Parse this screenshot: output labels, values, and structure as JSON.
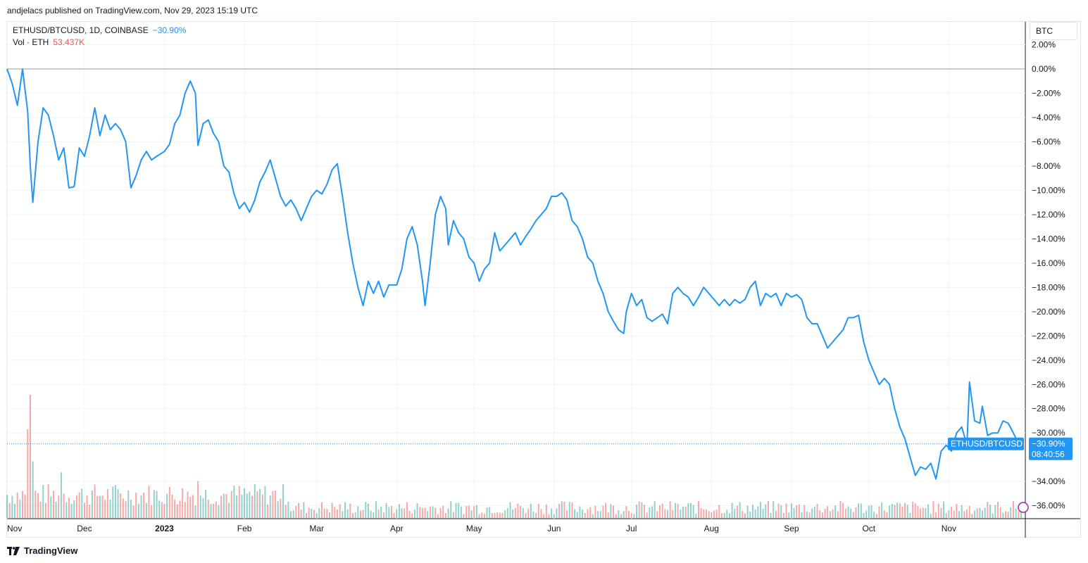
{
  "header": {
    "published": "andjelacs published on TradingView.com, Nov 29, 2023 15:19 UTC"
  },
  "legend": {
    "symbol": "ETHUSD/BTCUSD, 1D, COINBASE",
    "change": "−30.90%",
    "vol_label": "Vol · ETH",
    "vol_value": "53.437K"
  },
  "currency_button": "BTC",
  "price_tag": {
    "label": "ETHUSD/BTCUSD",
    "value": "−30.90%",
    "countdown": "08:40:56"
  },
  "branding": "TradingView",
  "colors": {
    "line": "#2196f3",
    "vol_up": "#26a69a",
    "vol_down": "#ef5350",
    "accent": "#2962ff"
  },
  "chart_data": {
    "type": "line",
    "title": "ETHUSD/BTCUSD, 1D, COINBASE",
    "xlabel": "",
    "ylabel": "",
    "y_scale": "percent",
    "ylim": [
      -37.5,
      2.2
    ],
    "y_ticks": [
      "2.00%",
      "0.00%",
      "−2.00%",
      "−4.00%",
      "−6.00%",
      "−8.00%",
      "−10.00%",
      "−12.00%",
      "−14.00%",
      "−16.00%",
      "−18.00%",
      "−20.00%",
      "−22.00%",
      "−24.00%",
      "−26.00%",
      "−28.00%",
      "−30.00%",
      "−34.00%",
      "−36.00%"
    ],
    "y_tick_values": [
      2,
      0,
      -2,
      -4,
      -6,
      -8,
      -10,
      -12,
      -14,
      -16,
      -18,
      -20,
      -22,
      -24,
      -26,
      -28,
      -30,
      -34,
      -36
    ],
    "x_ticks": [
      {
        "label": "Nov",
        "date": "2022-11-01"
      },
      {
        "label": "Dec",
        "date": "2022-12-01"
      },
      {
        "label": "2023",
        "date": "2023-01-01",
        "bold": true
      },
      {
        "label": "Feb",
        "date": "2023-02-01"
      },
      {
        "label": "Mar",
        "date": "2023-03-01"
      },
      {
        "label": "Apr",
        "date": "2023-04-01"
      },
      {
        "label": "May",
        "date": "2023-05-01"
      },
      {
        "label": "Jun",
        "date": "2023-06-01"
      },
      {
        "label": "Jul",
        "date": "2023-07-01"
      },
      {
        "label": "Aug",
        "date": "2023-08-01"
      },
      {
        "label": "Sep",
        "date": "2023-09-01"
      },
      {
        "label": "Oct",
        "date": "2023-10-01"
      },
      {
        "label": "Nov",
        "date": "2023-11-01"
      }
    ],
    "series": [
      {
        "points": [
          [
            "2022-11-01",
            0.0
          ],
          [
            "2022-11-03",
            -1.2
          ],
          [
            "2022-11-05",
            -3.0
          ],
          [
            "2022-11-07",
            0.0
          ],
          [
            "2022-11-09",
            -3.5
          ],
          [
            "2022-11-10",
            -8.0
          ],
          [
            "2022-11-11",
            -11.0
          ],
          [
            "2022-11-13",
            -6.0
          ],
          [
            "2022-11-15",
            -3.2
          ],
          [
            "2022-11-17",
            -3.8
          ],
          [
            "2022-11-19",
            -5.5
          ],
          [
            "2022-11-21",
            -7.5
          ],
          [
            "2022-11-23",
            -6.5
          ],
          [
            "2022-11-25",
            -9.8
          ],
          [
            "2022-11-27",
            -9.7
          ],
          [
            "2022-11-29",
            -6.5
          ],
          [
            "2022-12-01",
            -7.2
          ],
          [
            "2022-12-03",
            -5.5
          ],
          [
            "2022-12-05",
            -3.2
          ],
          [
            "2022-12-07",
            -5.5
          ],
          [
            "2022-12-09",
            -3.8
          ],
          [
            "2022-12-11",
            -5.0
          ],
          [
            "2022-12-13",
            -4.5
          ],
          [
            "2022-12-15",
            -5.0
          ],
          [
            "2022-12-17",
            -6.0
          ],
          [
            "2022-12-19",
            -9.8
          ],
          [
            "2022-12-21",
            -8.8
          ],
          [
            "2022-12-23",
            -7.5
          ],
          [
            "2022-12-25",
            -6.8
          ],
          [
            "2022-12-27",
            -7.5
          ],
          [
            "2022-12-29",
            -7.2
          ],
          [
            "2023-01-01",
            -6.8
          ],
          [
            "2023-01-03",
            -6.2
          ],
          [
            "2023-01-05",
            -4.5
          ],
          [
            "2023-01-07",
            -3.8
          ],
          [
            "2023-01-09",
            -2.0
          ],
          [
            "2023-01-11",
            -1.0
          ],
          [
            "2023-01-13",
            -2.0
          ],
          [
            "2023-01-14",
            -6.3
          ],
          [
            "2023-01-16",
            -4.5
          ],
          [
            "2023-01-18",
            -4.2
          ],
          [
            "2023-01-20",
            -5.3
          ],
          [
            "2023-01-22",
            -6.0
          ],
          [
            "2023-01-24",
            -8.0
          ],
          [
            "2023-01-26",
            -8.5
          ],
          [
            "2023-01-28",
            -10.3
          ],
          [
            "2023-01-30",
            -11.5
          ],
          [
            "2023-02-01",
            -11.0
          ],
          [
            "2023-02-03",
            -11.8
          ],
          [
            "2023-02-05",
            -10.8
          ],
          [
            "2023-02-07",
            -9.3
          ],
          [
            "2023-02-09",
            -8.5
          ],
          [
            "2023-02-11",
            -7.5
          ],
          [
            "2023-02-13",
            -9.0
          ],
          [
            "2023-02-15",
            -10.5
          ],
          [
            "2023-02-17",
            -11.3
          ],
          [
            "2023-02-19",
            -10.8
          ],
          [
            "2023-02-21",
            -11.5
          ],
          [
            "2023-02-23",
            -12.5
          ],
          [
            "2023-02-25",
            -11.5
          ],
          [
            "2023-02-27",
            -10.5
          ],
          [
            "2023-03-01",
            -10.0
          ],
          [
            "2023-03-03",
            -10.3
          ],
          [
            "2023-03-05",
            -9.5
          ],
          [
            "2023-03-07",
            -8.3
          ],
          [
            "2023-03-09",
            -7.8
          ],
          [
            "2023-03-11",
            -10.5
          ],
          [
            "2023-03-13",
            -13.5
          ],
          [
            "2023-03-15",
            -16.0
          ],
          [
            "2023-03-17",
            -18.0
          ],
          [
            "2023-03-19",
            -19.5
          ],
          [
            "2023-03-21",
            -17.5
          ],
          [
            "2023-03-23",
            -18.5
          ],
          [
            "2023-03-25",
            -17.5
          ],
          [
            "2023-03-27",
            -18.8
          ],
          [
            "2023-03-29",
            -17.8
          ],
          [
            "2023-04-01",
            -17.8
          ],
          [
            "2023-04-03",
            -16.5
          ],
          [
            "2023-04-05",
            -14.0
          ],
          [
            "2023-04-07",
            -13.0
          ],
          [
            "2023-04-09",
            -14.5
          ],
          [
            "2023-04-11",
            -17.5
          ],
          [
            "2023-04-12",
            -19.5
          ],
          [
            "2023-04-14",
            -16.0
          ],
          [
            "2023-04-16",
            -12.0
          ],
          [
            "2023-04-18",
            -10.5
          ],
          [
            "2023-04-20",
            -11.5
          ],
          [
            "2023-04-21",
            -14.5
          ],
          [
            "2023-04-23",
            -12.5
          ],
          [
            "2023-04-25",
            -13.5
          ],
          [
            "2023-04-27",
            -14.0
          ],
          [
            "2023-04-29",
            -15.5
          ],
          [
            "2023-05-01",
            -16.0
          ],
          [
            "2023-05-03",
            -17.5
          ],
          [
            "2023-05-05",
            -16.5
          ],
          [
            "2023-05-07",
            -16.0
          ],
          [
            "2023-05-09",
            -13.5
          ],
          [
            "2023-05-11",
            -15.0
          ],
          [
            "2023-05-13",
            -14.5
          ],
          [
            "2023-05-15",
            -14.0
          ],
          [
            "2023-05-17",
            -13.5
          ],
          [
            "2023-05-19",
            -14.5
          ],
          [
            "2023-05-21",
            -13.8
          ],
          [
            "2023-05-23",
            -13.2
          ],
          [
            "2023-05-25",
            -12.5
          ],
          [
            "2023-05-27",
            -12.0
          ],
          [
            "2023-05-29",
            -11.5
          ],
          [
            "2023-05-31",
            -10.5
          ],
          [
            "2023-06-02",
            -10.5
          ],
          [
            "2023-06-04",
            -10.2
          ],
          [
            "2023-06-06",
            -10.8
          ],
          [
            "2023-06-08",
            -12.5
          ],
          [
            "2023-06-10",
            -13.0
          ],
          [
            "2023-06-12",
            -14.0
          ],
          [
            "2023-06-14",
            -15.5
          ],
          [
            "2023-06-16",
            -16.0
          ],
          [
            "2023-06-18",
            -17.5
          ],
          [
            "2023-06-20",
            -18.5
          ],
          [
            "2023-06-22",
            -20.0
          ],
          [
            "2023-06-24",
            -20.8
          ],
          [
            "2023-06-26",
            -21.5
          ],
          [
            "2023-06-28",
            -21.8
          ],
          [
            "2023-06-29",
            -20.0
          ],
          [
            "2023-07-01",
            -18.5
          ],
          [
            "2023-07-03",
            -19.5
          ],
          [
            "2023-07-05",
            -19.0
          ],
          [
            "2023-07-07",
            -20.5
          ],
          [
            "2023-07-09",
            -20.8
          ],
          [
            "2023-07-11",
            -20.5
          ],
          [
            "2023-07-13",
            -20.2
          ],
          [
            "2023-07-15",
            -21.0
          ],
          [
            "2023-07-17",
            -18.5
          ],
          [
            "2023-07-19",
            -18.0
          ],
          [
            "2023-07-21",
            -18.5
          ],
          [
            "2023-07-23",
            -18.8
          ],
          [
            "2023-07-25",
            -19.5
          ],
          [
            "2023-07-27",
            -18.8
          ],
          [
            "2023-07-29",
            -18.0
          ],
          [
            "2023-07-31",
            -18.5
          ],
          [
            "2023-08-02",
            -19.0
          ],
          [
            "2023-08-04",
            -19.5
          ],
          [
            "2023-08-06",
            -19.0
          ],
          [
            "2023-08-08",
            -19.5
          ],
          [
            "2023-08-10",
            -19.0
          ],
          [
            "2023-08-12",
            -19.3
          ],
          [
            "2023-08-14",
            -19.0
          ],
          [
            "2023-08-16",
            -18.0
          ],
          [
            "2023-08-18",
            -17.5
          ],
          [
            "2023-08-20",
            -19.5
          ],
          [
            "2023-08-22",
            -18.5
          ],
          [
            "2023-08-24",
            -18.8
          ],
          [
            "2023-08-26",
            -18.5
          ],
          [
            "2023-08-28",
            -19.5
          ],
          [
            "2023-08-30",
            -18.5
          ],
          [
            "2023-09-01",
            -18.8
          ],
          [
            "2023-09-03",
            -18.6
          ],
          [
            "2023-09-05",
            -19.0
          ],
          [
            "2023-09-07",
            -20.5
          ],
          [
            "2023-09-09",
            -21.0
          ],
          [
            "2023-09-11",
            -21.0
          ],
          [
            "2023-09-13",
            -22.0
          ],
          [
            "2023-09-15",
            -23.0
          ],
          [
            "2023-09-17",
            -22.5
          ],
          [
            "2023-09-19",
            -22.0
          ],
          [
            "2023-09-21",
            -21.5
          ],
          [
            "2023-09-23",
            -20.5
          ],
          [
            "2023-09-25",
            -20.5
          ],
          [
            "2023-09-27",
            -20.3
          ],
          [
            "2023-09-29",
            -22.5
          ],
          [
            "2023-10-01",
            -24.0
          ],
          [
            "2023-10-03",
            -25.0
          ],
          [
            "2023-10-05",
            -26.0
          ],
          [
            "2023-10-07",
            -25.5
          ],
          [
            "2023-10-09",
            -26.0
          ],
          [
            "2023-10-11",
            -28.0
          ],
          [
            "2023-10-13",
            -29.5
          ],
          [
            "2023-10-15",
            -30.5
          ],
          [
            "2023-10-17",
            -32.0
          ],
          [
            "2023-10-19",
            -33.5
          ],
          [
            "2023-10-21",
            -32.8
          ],
          [
            "2023-10-23",
            -33.0
          ],
          [
            "2023-10-25",
            -32.5
          ],
          [
            "2023-10-27",
            -33.8
          ],
          [
            "2023-10-29",
            -31.5
          ],
          [
            "2023-10-31",
            -31.0
          ],
          [
            "2023-11-02",
            -31.5
          ],
          [
            "2023-11-04",
            -30.0
          ],
          [
            "2023-11-06",
            -29.5
          ],
          [
            "2023-11-08",
            -31.0
          ],
          [
            "2023-11-09",
            -25.8
          ],
          [
            "2023-11-11",
            -29.0
          ],
          [
            "2023-11-13",
            -29.2
          ],
          [
            "2023-11-14",
            -27.8
          ],
          [
            "2023-11-16",
            -30.2
          ],
          [
            "2023-11-18",
            -30.0
          ],
          [
            "2023-11-20",
            -30.0
          ],
          [
            "2023-11-22",
            -29.0
          ],
          [
            "2023-11-24",
            -29.2
          ],
          [
            "2023-11-26",
            -30.0
          ],
          [
            "2023-11-28",
            -30.9
          ]
        ]
      }
    ],
    "volume": {
      "label": "Vol · ETH",
      "last": "53.437K",
      "spikes": [
        {
          "date": "2022-11-10",
          "level": 1.0,
          "dir": "down"
        },
        {
          "date": "2022-11-09",
          "level": 0.72,
          "dir": "down"
        },
        {
          "date": "2022-11-11",
          "level": 0.46,
          "dir": "up"
        },
        {
          "date": "2022-11-22",
          "level": 0.37,
          "dir": "up"
        },
        {
          "date": "2023-01-14",
          "level": 0.3,
          "dir": "down"
        }
      ]
    }
  }
}
